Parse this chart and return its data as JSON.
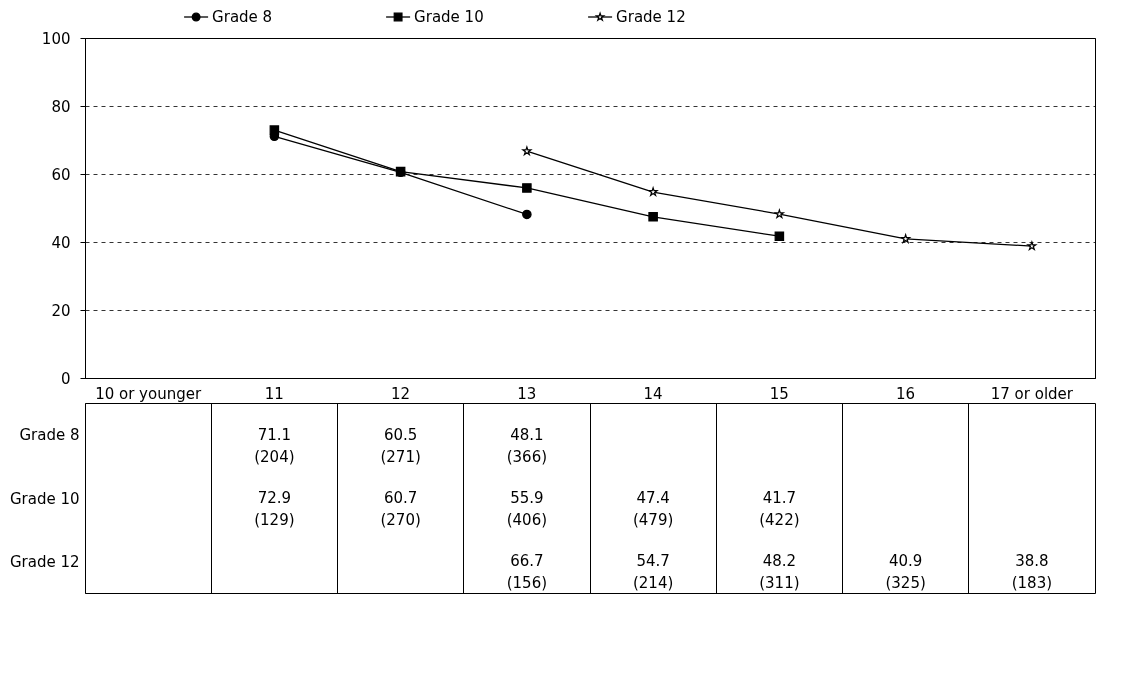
{
  "chart_data": {
    "type": "line",
    "categories": [
      "10 or younger",
      "11",
      "12",
      "13",
      "14",
      "15",
      "16",
      "17 or older"
    ],
    "series": [
      {
        "name": "Grade 8",
        "color": "#000000",
        "marker": "circle",
        "values": [
          null,
          71.1,
          60.5,
          48.1,
          null,
          null,
          null,
          null
        ],
        "value_labels": [
          null,
          "71.1 (204)",
          "60.5 (271)",
          "48.1 (366)",
          null,
          null,
          null,
          null
        ]
      },
      {
        "name": "Grade 10",
        "color": "#000000",
        "marker": "square",
        "values": [
          null,
          72.9,
          60.7,
          55.9,
          47.4,
          41.7,
          null,
          null
        ],
        "value_labels": [
          null,
          "72.9 (129)",
          "60.7 (270)",
          "55.9 (406)",
          "47.4 (479)",
          "41.7 (422)",
          null,
          null
        ]
      },
      {
        "name": "Grade 12",
        "color": "#000000",
        "marker": "star",
        "values": [
          null,
          null,
          null,
          66.7,
          54.7,
          48.2,
          40.9,
          38.8
        ],
        "value_labels": [
          null,
          null,
          null,
          "66.7 (156)",
          "54.7 (214)",
          "48.2 (311)",
          "40.9 (325)",
          "38.8 (183)"
        ]
      }
    ],
    "ylim": [
      0,
      100
    ],
    "yticks": [
      0,
      20,
      40,
      60,
      80,
      100
    ],
    "grid": "y",
    "legend": "top"
  }
}
